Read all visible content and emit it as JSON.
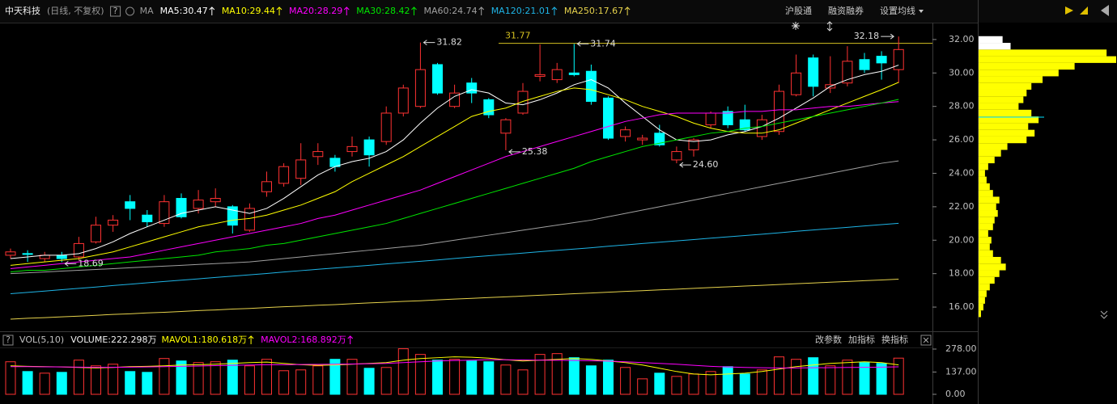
{
  "header": {
    "name": "中天科技",
    "period": "(日线, 不复权)",
    "help": "?",
    "ma": "MA",
    "buttons": [
      "沪股通",
      "融资融券",
      "设置均线"
    ]
  },
  "chart_data": [
    {
      "type": "candlestick",
      "up_color": "#ff3232",
      "down_color": "#00ffff",
      "ylim": [
        14.65,
        33.01
      ],
      "yticks": [
        {
          "value": 16,
          "label": "16.00"
        },
        {
          "value": 18,
          "label": "18.00"
        },
        {
          "value": 20,
          "label": "20.00"
        },
        {
          "value": 22,
          "label": "22.00"
        },
        {
          "value": 24,
          "label": "24.00"
        },
        {
          "value": 26,
          "label": "26.00"
        },
        {
          "value": 28,
          "label": "28.00"
        },
        {
          "value": 30,
          "label": "30.00"
        },
        {
          "value": 32,
          "label": "32.00"
        }
      ],
      "ref_line": 31.77,
      "candles": [
        {
          "open": 19.1,
          "high": 19.5,
          "low": 18.9,
          "close": 19.3
        },
        {
          "open": 19.2,
          "high": 19.4,
          "low": 18.7,
          "close": 19.15
        },
        {
          "open": 18.9,
          "high": 19.3,
          "low": 18.7,
          "close": 19.1
        },
        {
          "open": 19.1,
          "high": 19.3,
          "low": 18.69,
          "close": 18.9,
          "low_label": "18.69"
        },
        {
          "open": 19.0,
          "high": 20.2,
          "low": 18.8,
          "close": 19.8
        },
        {
          "open": 19.9,
          "high": 21.4,
          "low": 19.8,
          "close": 20.9
        },
        {
          "open": 20.9,
          "high": 21.5,
          "low": 20.5,
          "close": 21.2
        },
        {
          "open": 22.3,
          "high": 22.7,
          "low": 21.2,
          "close": 21.9
        },
        {
          "open": 21.5,
          "high": 21.8,
          "low": 20.8,
          "close": 21.1
        },
        {
          "open": 21.0,
          "high": 22.7,
          "low": 20.8,
          "close": 22.3
        },
        {
          "open": 22.5,
          "high": 22.8,
          "low": 21.3,
          "close": 21.4
        },
        {
          "open": 21.9,
          "high": 23.0,
          "low": 21.6,
          "close": 22.4
        },
        {
          "open": 22.3,
          "high": 23.1,
          "low": 22.0,
          "close": 22.5
        },
        {
          "open": 22.0,
          "high": 22.1,
          "low": 20.4,
          "close": 20.9
        },
        {
          "open": 20.6,
          "high": 22.2,
          "low": 20.5,
          "close": 21.9
        },
        {
          "open": 22.9,
          "high": 24.1,
          "low": 22.6,
          "close": 23.5
        },
        {
          "open": 23.4,
          "high": 24.6,
          "low": 23.2,
          "close": 24.4
        },
        {
          "open": 23.7,
          "high": 25.8,
          "low": 23.3,
          "close": 24.8
        },
        {
          "open": 25.0,
          "high": 25.8,
          "low": 24.5,
          "close": 25.3
        },
        {
          "open": 24.9,
          "high": 25.1,
          "low": 24.1,
          "close": 24.4
        },
        {
          "open": 25.3,
          "high": 26.2,
          "low": 25.0,
          "close": 25.6
        },
        {
          "open": 26.0,
          "high": 26.2,
          "low": 24.4,
          "close": 25.1
        },
        {
          "open": 25.9,
          "high": 28.0,
          "low": 25.7,
          "close": 27.6
        },
        {
          "open": 27.6,
          "high": 29.3,
          "low": 27.4,
          "close": 29.1
        },
        {
          "open": 28.0,
          "high": 31.82,
          "low": 27.9,
          "close": 30.2,
          "high_label": "31.82"
        },
        {
          "open": 30.5,
          "high": 30.6,
          "low": 28.7,
          "close": 28.8
        },
        {
          "open": 28.0,
          "high": 29.3,
          "low": 27.9,
          "close": 28.8
        },
        {
          "open": 29.4,
          "high": 29.7,
          "low": 28.2,
          "close": 28.8
        },
        {
          "open": 28.4,
          "high": 28.5,
          "low": 27.3,
          "close": 27.5
        },
        {
          "open": 26.4,
          "high": 27.3,
          "low": 25.38,
          "close": 27.2,
          "low_label": "25.38"
        },
        {
          "open": 27.6,
          "high": 29.4,
          "low": 27.5,
          "close": 28.9
        },
        {
          "open": 29.8,
          "high": 31.7,
          "low": 29.5,
          "close": 29.9
        },
        {
          "open": 29.6,
          "high": 30.6,
          "low": 29.4,
          "close": 30.2
        },
        {
          "open": 30.0,
          "high": 31.74,
          "low": 29.8,
          "close": 29.9,
          "high_label": "31.74"
        },
        {
          "open": 30.1,
          "high": 30.5,
          "low": 28.1,
          "close": 28.3
        },
        {
          "open": 28.5,
          "high": 28.6,
          "low": 26.0,
          "close": 26.1
        },
        {
          "open": 26.2,
          "high": 26.8,
          "low": 25.9,
          "close": 26.6
        },
        {
          "open": 26.0,
          "high": 26.3,
          "low": 25.7,
          "close": 26.1
        },
        {
          "open": 26.4,
          "high": 26.9,
          "low": 25.6,
          "close": 25.7
        },
        {
          "open": 24.8,
          "high": 25.6,
          "low": 24.6,
          "close": 25.3,
          "low_label": "24.60"
        },
        {
          "open": 25.4,
          "high": 26.1,
          "low": 25.0,
          "close": 26.0
        },
        {
          "open": 26.9,
          "high": 27.7,
          "low": 26.7,
          "close": 27.6
        },
        {
          "open": 27.7,
          "high": 28.0,
          "low": 26.7,
          "close": 26.9
        },
        {
          "open": 27.2,
          "high": 28.1,
          "low": 26.5,
          "close": 26.6
        },
        {
          "open": 26.2,
          "high": 27.5,
          "low": 26.0,
          "close": 27.2
        },
        {
          "open": 26.5,
          "high": 29.3,
          "low": 26.3,
          "close": 28.9
        },
        {
          "open": 28.7,
          "high": 31.1,
          "low": 28.6,
          "close": 30.0
        },
        {
          "open": 30.9,
          "high": 31.1,
          "low": 28.6,
          "close": 29.2
        },
        {
          "open": 29.1,
          "high": 31.0,
          "low": 28.8,
          "close": 29.3
        },
        {
          "open": 29.4,
          "high": 31.6,
          "low": 29.2,
          "close": 30.7
        },
        {
          "open": 30.8,
          "high": 31.2,
          "low": 30.0,
          "close": 30.2
        },
        {
          "open": 31.0,
          "high": 31.3,
          "low": 29.6,
          "close": 30.6
        },
        {
          "open": 30.2,
          "high": 32.18,
          "low": 29.4,
          "close": 31.4,
          "high_label": "32.18"
        }
      ],
      "series": [
        {
          "name": "MA5",
          "label": "MA5:30.47",
          "color": "#ffffff",
          "values": [
            18.9,
            19.0,
            19.1,
            19.1,
            19.2,
            19.5,
            19.9,
            20.4,
            20.8,
            21.2,
            21.6,
            21.8,
            22.0,
            21.8,
            21.6,
            21.9,
            22.5,
            23.2,
            23.9,
            24.4,
            24.7,
            24.9,
            25.3,
            26.0,
            27.0,
            27.9,
            28.6,
            29.0,
            28.8,
            28.2,
            28.1,
            28.4,
            28.8,
            29.3,
            29.6,
            29.1,
            28.2,
            27.4,
            26.6,
            26.0,
            25.9,
            26.0,
            26.3,
            26.5,
            26.8,
            27.3,
            27.9,
            28.5,
            29.2,
            29.6,
            29.9,
            30.1,
            30.47
          ]
        },
        {
          "name": "MA10",
          "label": "MA10:29.44",
          "color": "#ffff00",
          "values": [
            18.5,
            18.6,
            18.7,
            18.8,
            18.9,
            19.1,
            19.3,
            19.6,
            19.9,
            20.2,
            20.5,
            20.8,
            21.0,
            21.2,
            21.3,
            21.5,
            21.8,
            22.1,
            22.5,
            22.9,
            23.5,
            24.0,
            24.5,
            25.0,
            25.6,
            26.2,
            26.8,
            27.4,
            27.7,
            27.9,
            28.3,
            28.6,
            28.9,
            29.1,
            29.0,
            28.7,
            28.4,
            28.0,
            27.7,
            27.4,
            27.0,
            26.7,
            26.5,
            26.4,
            26.4,
            26.6,
            27.0,
            27.4,
            27.8,
            28.2,
            28.6,
            29.0,
            29.44
          ]
        },
        {
          "name": "MA20",
          "label": "MA20:28.29",
          "color": "#ff00ff",
          "values": [
            18.3,
            18.4,
            18.5,
            18.6,
            18.7,
            18.8,
            18.9,
            19.0,
            19.2,
            19.4,
            19.6,
            19.8,
            20.0,
            20.2,
            20.4,
            20.6,
            20.8,
            21.0,
            21.3,
            21.5,
            21.8,
            22.1,
            22.4,
            22.7,
            23.0,
            23.4,
            23.8,
            24.2,
            24.6,
            25.0,
            25.3,
            25.6,
            25.9,
            26.2,
            26.5,
            26.8,
            27.1,
            27.3,
            27.5,
            27.6,
            27.6,
            27.6,
            27.6,
            27.7,
            27.7,
            27.8,
            27.8,
            27.9,
            28.0,
            28.0,
            28.1,
            28.2,
            28.29
          ]
        },
        {
          "name": "MA30",
          "label": "MA30:28.42",
          "color": "#00e600",
          "values": [
            18.1,
            18.2,
            18.2,
            18.3,
            18.4,
            18.5,
            18.6,
            18.7,
            18.8,
            18.9,
            19.0,
            19.1,
            19.3,
            19.4,
            19.5,
            19.7,
            19.8,
            20.0,
            20.2,
            20.4,
            20.6,
            20.8,
            21.0,
            21.3,
            21.6,
            21.9,
            22.2,
            22.5,
            22.8,
            23.1,
            23.4,
            23.7,
            24.0,
            24.3,
            24.7,
            25.0,
            25.3,
            25.6,
            25.8,
            26.0,
            26.2,
            26.4,
            26.5,
            26.7,
            26.8,
            27.0,
            27.2,
            27.4,
            27.6,
            27.8,
            28.0,
            28.2,
            28.42
          ]
        },
        {
          "name": "MA60",
          "label": "MA60:24.74",
          "color": "#a0a0a0",
          "values": [
            18.0,
            18.05,
            18.1,
            18.15,
            18.2,
            18.25,
            18.3,
            18.35,
            18.4,
            18.45,
            18.5,
            18.55,
            18.6,
            18.65,
            18.7,
            18.8,
            18.9,
            19.0,
            19.1,
            19.2,
            19.3,
            19.4,
            19.5,
            19.6,
            19.7,
            19.85,
            20.0,
            20.15,
            20.3,
            20.45,
            20.6,
            20.75,
            20.9,
            21.05,
            21.2,
            21.4,
            21.6,
            21.8,
            22.0,
            22.2,
            22.4,
            22.6,
            22.8,
            23.0,
            23.2,
            23.4,
            23.6,
            23.8,
            24.0,
            24.2,
            24.4,
            24.6,
            24.74
          ]
        },
        {
          "name": "MA120",
          "label": "MA120:21.01",
          "color": "#1eb4e6",
          "values": [
            16.8,
            16.88,
            16.96,
            17.04,
            17.12,
            17.2,
            17.29,
            17.37,
            17.45,
            17.53,
            17.61,
            17.69,
            17.77,
            17.85,
            17.93,
            18.01,
            18.1,
            18.18,
            18.26,
            18.34,
            18.42,
            18.5,
            18.58,
            18.66,
            18.74,
            18.82,
            18.91,
            18.99,
            19.07,
            19.15,
            19.23,
            19.31,
            19.39,
            19.47,
            19.55,
            19.64,
            19.72,
            19.8,
            19.88,
            19.96,
            20.04,
            20.12,
            20.2,
            20.28,
            20.36,
            20.44,
            20.53,
            20.61,
            20.69,
            20.77,
            20.85,
            20.93,
            21.01
          ]
        },
        {
          "name": "MA250",
          "label": "MA250:17.67",
          "color": "#e6d24c",
          "values": [
            15.28,
            15.33,
            15.37,
            15.42,
            15.46,
            15.51,
            15.56,
            15.6,
            15.65,
            15.69,
            15.74,
            15.79,
            15.83,
            15.88,
            15.92,
            15.97,
            16.02,
            16.06,
            16.11,
            16.15,
            16.2,
            16.25,
            16.29,
            16.34,
            16.38,
            16.43,
            16.48,
            16.52,
            16.57,
            16.61,
            16.66,
            16.71,
            16.75,
            16.8,
            16.84,
            16.89,
            16.94,
            16.98,
            17.03,
            17.07,
            17.12,
            17.17,
            17.21,
            17.26,
            17.3,
            17.35,
            17.4,
            17.44,
            17.49,
            17.53,
            17.58,
            17.62,
            17.67
          ]
        }
      ],
      "volume_profile": {
        "color": "#ffff00",
        "cost_line": 27.36,
        "prices": [
          15.6,
          16.0,
          16.4,
          16.8,
          17.2,
          17.6,
          18.0,
          18.4,
          18.8,
          19.2,
          19.6,
          20.0,
          20.4,
          20.8,
          21.2,
          21.6,
          22.0,
          22.4,
          22.8,
          23.2,
          23.6,
          24.0,
          24.4,
          24.8,
          25.2,
          25.6,
          26.0,
          26.4,
          26.8,
          27.2,
          27.6,
          28.0,
          28.4,
          28.8,
          29.2,
          29.6,
          30.0,
          30.4,
          30.8,
          31.2,
          31.6,
          32.0
        ],
        "values": [
          3,
          6,
          8,
          10,
          14,
          20,
          26,
          34,
          28,
          18,
          14,
          16,
          12,
          18,
          20,
          24,
          22,
          26,
          18,
          14,
          10,
          8,
          12,
          20,
          28,
          36,
          60,
          70,
          62,
          75,
          66,
          50,
          56,
          60,
          66,
          80,
          100,
          120,
          172,
          160,
          40,
          30
        ]
      }
    },
    {
      "type": "bar",
      "title": "VOL(5,10)",
      "help": "?",
      "values_label": "VOLUME:222.298万",
      "buttons": [
        "改参数",
        "加指标",
        "换指标"
      ],
      "ylim": [
        0,
        288
      ],
      "yticks": [
        {
          "value": 278,
          "label": "278.00"
        },
        {
          "value": 137,
          "label": "137.00"
        },
        {
          "value": 0,
          "label": "0.00"
        }
      ],
      "values": [
        200,
        140,
        130,
        135,
        210,
        175,
        185,
        140,
        135,
        220,
        205,
        195,
        200,
        210,
        175,
        215,
        145,
        150,
        175,
        215,
        215,
        160,
        165,
        280,
        245,
        210,
        215,
        205,
        200,
        180,
        150,
        245,
        250,
        225,
        175,
        210,
        165,
        95,
        130,
        110,
        125,
        140,
        170,
        125,
        150,
        230,
        215,
        225,
        175,
        210,
        195,
        190,
        222.298
      ],
      "series": [
        {
          "name": "MAVOL1",
          "label": "MAVOL1:180.618万",
          "color": "#ffff00",
          "values": [
            175,
            172,
            170,
            168,
            165,
            162,
            165,
            170,
            172,
            175,
            180,
            182,
            185,
            190,
            195,
            198,
            190,
            182,
            178,
            180,
            185,
            190,
            195,
            210,
            220,
            225,
            230,
            228,
            222,
            212,
            205,
            210,
            215,
            220,
            215,
            205,
            195,
            180,
            160,
            140,
            125,
            120,
            125,
            130,
            140,
            155,
            170,
            180,
            190,
            195,
            200,
            195,
            180.618
          ]
        },
        {
          "name": "MAVOL2",
          "label": "MAVOL2:168.892万",
          "color": "#ff00ff",
          "values": [
            170,
            170,
            169,
            168,
            167,
            166,
            166,
            167,
            168,
            170,
            172,
            174,
            176,
            178,
            180,
            182,
            182,
            183,
            184,
            185,
            186,
            188,
            190,
            195,
            200,
            205,
            208,
            210,
            212,
            212,
            211,
            210,
            209,
            208,
            206,
            204,
            200,
            195,
            190,
            185,
            178,
            172,
            168,
            165,
            163,
            162,
            162,
            163,
            164,
            165,
            166,
            167,
            168.892
          ]
        }
      ]
    }
  ]
}
